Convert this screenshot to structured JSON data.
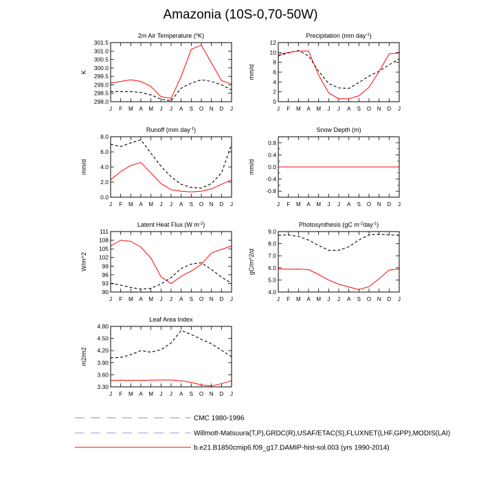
{
  "figure_title": "Amazonia (10S-0,70-50W)",
  "months": [
    "J",
    "F",
    "M",
    "A",
    "M",
    "J",
    "J",
    "A",
    "S",
    "O",
    "N",
    "D",
    "J"
  ],
  "legend": [
    {
      "label": "CMC 1980-1996",
      "color": "#8c8c99",
      "dash": true
    },
    {
      "label": "Willmott-Matsuura(T,P),GRDC(R),USAF/ETAC(S),FLUXNET(LHF,GPP),MODIS(LAI)",
      "color": "#9a9ae0",
      "dash": true
    },
    {
      "label": "b.e21.B1850cmip6.f09_g17.DAMIP-hist-sol.003 (yrs 1990-2014)",
      "color": "#ff0000",
      "dash": false
    }
  ],
  "colors": {
    "obs": "#000000",
    "model": "#ff0000"
  },
  "chart_data": [
    {
      "type": "line",
      "title_parts": [
        "2m Air Temperature (",
        "o",
        "K)"
      ],
      "ylabel": "K",
      "ylim": [
        298.0,
        301.5
      ],
      "yticks": [
        "298.0",
        "298.5",
        "299.0",
        "299.5",
        "300.0",
        "300.5",
        "301.0",
        "301.5"
      ],
      "ytick_values": [
        298.0,
        298.5,
        299.0,
        299.5,
        300.0,
        300.5,
        301.0,
        301.5
      ],
      "series": [
        {
          "style": "dashed",
          "values": [
            298.6,
            298.6,
            298.6,
            298.55,
            298.4,
            298.15,
            298.05,
            298.8,
            299.1,
            299.3,
            299.2,
            299.0,
            298.7
          ]
        },
        {
          "style": "solid",
          "values": [
            299.1,
            299.2,
            299.3,
            299.2,
            298.9,
            298.3,
            298.2,
            299.5,
            301.1,
            301.35,
            300.3,
            299.25,
            299.05
          ]
        }
      ]
    },
    {
      "type": "line",
      "title_parts": [
        "Precipitation (mm day",
        "-1",
        ")"
      ],
      "ylabel": "mm/d",
      "ylim": [
        0,
        12
      ],
      "yticks": [
        "0",
        "2",
        "4",
        "6",
        "8",
        "10",
        "12"
      ],
      "ytick_values": [
        0,
        2,
        4,
        6,
        8,
        10,
        12
      ],
      "series": [
        {
          "style": "dashed",
          "values": [
            9.3,
            9.9,
            10.4,
            9.3,
            6.2,
            3.7,
            2.8,
            2.7,
            3.9,
            5.2,
            6.2,
            7.5,
            8.7
          ]
        },
        {
          "style": "solid",
          "values": [
            9.6,
            10.0,
            10.3,
            10.3,
            5.4,
            1.8,
            0.6,
            0.6,
            1.2,
            2.9,
            6.2,
            9.7,
            9.9
          ]
        }
      ]
    },
    {
      "type": "line",
      "title_parts": [
        "Runoff (mm day",
        "-1",
        ")"
      ],
      "ylabel": "mm/d",
      "ylim": [
        0,
        8
      ],
      "yticks": [
        "0.0",
        "2.0",
        "4.0",
        "6.0",
        "8.0"
      ],
      "ytick_values": [
        0,
        2,
        4,
        6,
        8
      ],
      "series": [
        {
          "style": "dashed",
          "values": [
            7.0,
            6.7,
            7.2,
            7.6,
            5.8,
            4.1,
            2.7,
            1.7,
            1.3,
            1.2,
            1.8,
            3.2,
            7.0
          ]
        },
        {
          "style": "solid",
          "values": [
            2.3,
            3.4,
            4.2,
            4.6,
            3.2,
            1.8,
            1.0,
            0.8,
            0.7,
            0.8,
            1.1,
            1.7,
            2.3
          ]
        }
      ]
    },
    {
      "type": "line",
      "title_parts": [
        "Snow Depth (m)"
      ],
      "ylabel": "mm/d",
      "ylim": [
        -1.0,
        1.0
      ],
      "yticks": [
        "-0.8",
        "-0.4",
        "0.0",
        "0.4",
        "0.8"
      ],
      "ytick_values": [
        -0.8,
        -0.4,
        0.0,
        0.4,
        0.8
      ],
      "minor_ytick_values": [
        -0.6,
        -0.2,
        0.2,
        0.6
      ],
      "series": [
        {
          "style": "dashed",
          "values": [
            0,
            0,
            0,
            0,
            0,
            0,
            0,
            0,
            0,
            0,
            0,
            0,
            0
          ]
        },
        {
          "style": "solid",
          "values": [
            0,
            0,
            0,
            0,
            0,
            0,
            0,
            0,
            0,
            0,
            0,
            0,
            0
          ]
        }
      ]
    },
    {
      "type": "line",
      "title_parts": [
        "Latent Heat Flux (W m",
        "-2",
        ")"
      ],
      "ylabel": "W/m^2",
      "ylim": [
        90,
        111
      ],
      "yticks": [
        "90",
        "93",
        "96",
        "99",
        "102",
        "105",
        "108",
        "111"
      ],
      "ytick_values": [
        90,
        93,
        96,
        99,
        102,
        105,
        108,
        111
      ],
      "series": [
        {
          "style": "dashed",
          "values": [
            93.0,
            92.4,
            91.6,
            91.0,
            91.3,
            92.8,
            95.0,
            98.2,
            99.7,
            100.2,
            97.8,
            95.2,
            93.0
          ]
        },
        {
          "style": "solid",
          "values": [
            106.0,
            108.0,
            107.6,
            105.6,
            101.8,
            95.3,
            92.9,
            95.5,
            97.3,
            99.6,
            103.6,
            104.8,
            106.0
          ]
        }
      ]
    },
    {
      "type": "line",
      "title_parts": [
        "Photosynthesis (gC m",
        "-2",
        "day",
        "-1",
        ")"
      ],
      "ylabel": "gC/m^2/d",
      "ylim": [
        4.0,
        9.0
      ],
      "yticks": [
        "4.0",
        "5.0",
        "6.0",
        "7.0",
        "8.0",
        "9.0"
      ],
      "ytick_values": [
        4,
        5,
        6,
        7,
        8,
        9
      ],
      "series": [
        {
          "style": "dashed",
          "values": [
            8.7,
            8.72,
            8.6,
            8.3,
            7.85,
            7.45,
            7.45,
            7.75,
            8.3,
            8.72,
            8.78,
            8.72,
            8.7
          ]
        },
        {
          "style": "solid",
          "values": [
            5.92,
            5.88,
            5.9,
            5.85,
            5.45,
            5.0,
            4.65,
            4.42,
            4.2,
            4.45,
            5.1,
            5.82,
            5.92
          ]
        }
      ]
    },
    {
      "type": "line",
      "title_parts": [
        "Leaf Area Index"
      ],
      "ylabel": "m2/m2",
      "ylim": [
        3.3,
        4.8
      ],
      "yticks": [
        "3.30",
        "3.60",
        "3.90",
        "4.20",
        "4.50",
        "4.80"
      ],
      "ytick_values": [
        3.3,
        3.6,
        3.9,
        4.2,
        4.5,
        4.8
      ],
      "series": [
        {
          "style": "dashed",
          "values": [
            4.02,
            4.03,
            4.1,
            4.2,
            4.16,
            4.22,
            4.39,
            4.7,
            4.6,
            4.48,
            4.37,
            4.21,
            4.05
          ]
        },
        {
          "style": "solid",
          "values": [
            3.46,
            3.465,
            3.46,
            3.46,
            3.465,
            3.47,
            3.47,
            3.45,
            3.41,
            3.35,
            3.32,
            3.38,
            3.45
          ]
        }
      ]
    }
  ]
}
